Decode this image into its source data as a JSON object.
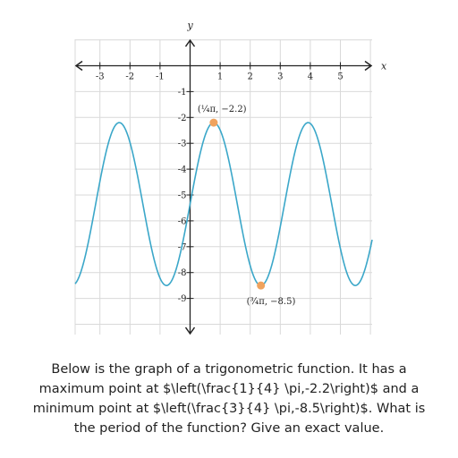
{
  "chart_data": {
    "type": "line",
    "title": "",
    "xlabel": "x",
    "ylabel": "y",
    "xlim": [
      -3.9,
      6.2
    ],
    "ylim": [
      -10.4,
      2.0
    ],
    "x_ticks": [
      -3,
      -2,
      -1,
      1,
      2,
      3,
      4,
      5
    ],
    "y_ticks": [
      -1,
      -2,
      -3,
      -4,
      -5,
      -6,
      -7,
      -8,
      -9
    ],
    "grid": true,
    "series": [
      {
        "function": "y = 3.15*sin(2*x) - 5.35",
        "color": "#3ba7c9",
        "amplitude": 3.15,
        "midline": -5.35,
        "period_value": 3.14159
      }
    ],
    "points": [
      {
        "label": "(¼π, −2.2)",
        "x": 0.785398,
        "y": -2.2,
        "color": "#f0a35e"
      },
      {
        "label": "(¾π, −8.5)",
        "x": 2.356194,
        "y": -8.5,
        "color": "#f0a35e"
      }
    ]
  },
  "question": "Below is the graph of a trigonometric function. It has a maximum point at $\\left(\\frac{1}{4} \\pi,-2.2\\right)$ and a minimum point at $\\left(\\frac{3}{4} \\pi,-8.5\\right)$. What is the period of the function? Give an exact value."
}
